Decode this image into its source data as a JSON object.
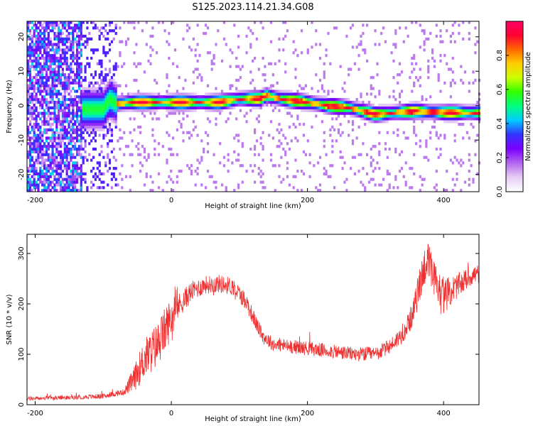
{
  "figure": {
    "title": "S125.2023.114.21.34.G08"
  },
  "chart_data": [
    {
      "type": "heatmap",
      "xlabel": "Height of straight line (km)",
      "ylabel": "Frequency (Hz)",
      "xlim": [
        -212,
        452
      ],
      "ylim": [
        -25,
        24.5
      ],
      "xticks": [
        -200,
        0,
        200,
        400
      ],
      "yticks": [
        -20,
        -10,
        0,
        10,
        20
      ],
      "grid": false,
      "colorbar": {
        "label": "Normalized spectral amplitude",
        "range": [
          0,
          1
        ],
        "ticks": [
          "0.0",
          "0.2",
          "0.4",
          "0.6",
          "0.8"
        ],
        "colors": [
          "#ffffff",
          "#e6ccf5",
          "#b266ee",
          "#7a00ff",
          "#3333ff",
          "#00ccff",
          "#00ff80",
          "#33ff00",
          "#ccff00",
          "#ffcc00",
          "#ff6600",
          "#ff0033",
          "#ff0066"
        ]
      },
      "ridge": {
        "description_points_x_km": [
          -100,
          -90,
          -80,
          -60,
          0,
          70,
          100,
          130,
          140,
          160,
          200,
          230,
          260,
          290,
          300,
          330,
          360,
          400,
          452
        ],
        "frequency_hz": [
          -1,
          2,
          0.5,
          1,
          1,
          1,
          2,
          2,
          3,
          2,
          1,
          0,
          -0.5,
          -2,
          -2.5,
          -2,
          -1.5,
          -2,
          -2
        ]
      }
    },
    {
      "type": "line",
      "xlabel": "Height of straight line (km)",
      "ylabel": "SNR (10 * v/v)",
      "xlim": [
        -212,
        452
      ],
      "ylim": [
        0,
        338
      ],
      "xticks": [
        -200,
        0,
        200,
        400
      ],
      "yticks": [
        0,
        100,
        200,
        300
      ],
      "grid": false,
      "series": [
        {
          "color": "#f03030",
          "x": [
            -212,
            -150,
            -100,
            -70,
            -55,
            -40,
            -20,
            -5,
            10,
            30,
            50,
            70,
            90,
            110,
            125,
            135,
            150,
            180,
            210,
            240,
            270,
            300,
            320,
            340,
            355,
            365,
            375,
            385,
            400,
            420,
            440,
            452
          ],
          "y": [
            12,
            14,
            17,
            25,
            50,
            90,
            120,
            160,
            195,
            225,
            238,
            240,
            235,
            205,
            160,
            135,
            120,
            115,
            110,
            105,
            100,
            100,
            115,
            140,
            180,
            240,
            290,
            250,
            215,
            235,
            255,
            260
          ],
          "noise": [
            4,
            4,
            5,
            6,
            25,
            40,
            45,
            45,
            25,
            20,
            18,
            18,
            18,
            18,
            15,
            15,
            14,
            14,
            14,
            14,
            14,
            15,
            15,
            18,
            25,
            35,
            45,
            40,
            35,
            25,
            20,
            20
          ]
        }
      ]
    }
  ]
}
